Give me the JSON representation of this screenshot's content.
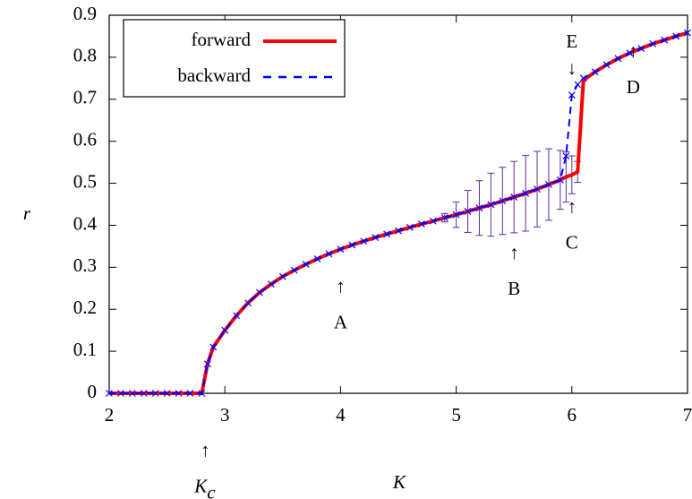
{
  "chart_data": {
    "type": "line",
    "xlabel": "K",
    "ylabel": "r",
    "x": [
      2.0,
      2.1,
      2.2,
      2.3,
      2.4,
      2.5,
      2.6,
      2.7,
      2.8,
      2.85,
      2.9,
      3.0,
      3.1,
      3.2,
      3.3,
      3.4,
      3.5,
      3.6,
      3.7,
      3.8,
      3.9,
      4.0,
      4.1,
      4.2,
      4.3,
      4.4,
      4.5,
      4.6,
      4.7,
      4.8,
      4.9,
      5.0,
      5.1,
      5.2,
      5.3,
      5.4,
      5.5,
      5.6,
      5.7,
      5.8,
      5.9,
      5.95,
      6.0,
      6.05,
      6.1,
      6.2,
      6.3,
      6.4,
      6.5,
      6.6,
      6.7,
      6.8,
      6.9,
      7.0
    ],
    "series": [
      {
        "name": "forward",
        "color": "#ff0000",
        "error_color": "#5a2ca0",
        "values": [
          0,
          0,
          0,
          0,
          0,
          0,
          0,
          0,
          0,
          0.07,
          0.11,
          0.15,
          0.185,
          0.215,
          0.24,
          0.26,
          0.278,
          0.293,
          0.307,
          0.32,
          0.332,
          0.343,
          0.353,
          0.362,
          0.371,
          0.379,
          0.387,
          0.395,
          0.403,
          0.41,
          0.418,
          0.425,
          0.433,
          0.441,
          0.449,
          0.458,
          0.467,
          0.476,
          0.486,
          0.497,
          0.508,
          0.515,
          0.52,
          0.527,
          0.745,
          0.765,
          0.782,
          0.797,
          0.81,
          0.821,
          0.832,
          0.841,
          0.85,
          0.858
        ],
        "errors": [
          null,
          null,
          null,
          null,
          null,
          null,
          null,
          null,
          null,
          null,
          null,
          null,
          null,
          null,
          null,
          null,
          null,
          null,
          null,
          null,
          null,
          null,
          null,
          null,
          null,
          null,
          null,
          null,
          null,
          null,
          0.01,
          0.03,
          0.05,
          0.065,
          0.075,
          0.08,
          0.085,
          0.09,
          0.09,
          0.085,
          0.07,
          0.06,
          0.045,
          0.025,
          null,
          null,
          null,
          null,
          null,
          null,
          null,
          null,
          null,
          null
        ]
      },
      {
        "name": "backward",
        "color": "#0000ff",
        "dashed": true,
        "marker": "x",
        "values": [
          0,
          0,
          0,
          0,
          0,
          0,
          0,
          0,
          0,
          0.07,
          0.11,
          0.15,
          0.185,
          0.215,
          0.24,
          0.26,
          0.278,
          0.293,
          0.307,
          0.32,
          0.332,
          0.343,
          0.353,
          0.362,
          0.371,
          0.379,
          0.387,
          0.395,
          0.403,
          0.41,
          0.418,
          0.425,
          0.433,
          0.441,
          0.449,
          0.458,
          0.467,
          0.476,
          0.486,
          0.497,
          0.508,
          0.565,
          0.71,
          0.735,
          0.75,
          0.765,
          0.782,
          0.797,
          0.81,
          0.821,
          0.832,
          0.841,
          0.85,
          0.858
        ]
      }
    ],
    "xlim": [
      2,
      7
    ],
    "ylim": [
      0,
      0.9
    ],
    "xticks": [
      2,
      3,
      4,
      5,
      6,
      7
    ],
    "yticks": [
      0,
      0.1,
      0.2,
      0.3,
      0.4,
      0.5,
      0.6,
      0.7,
      0.8,
      0.9
    ],
    "legend": "top-left",
    "annotations": [
      {
        "label": "A",
        "arrow": "↑",
        "x": 4.0,
        "y": 0.25
      },
      {
        "label": "B",
        "arrow": "↑",
        "x": 5.5,
        "y": 0.33
      },
      {
        "label": "C",
        "arrow": "↑",
        "x": 6.0,
        "y": 0.44
      },
      {
        "label": "D",
        "arrow": "↑",
        "x": 6.53,
        "y": 0.81
      },
      {
        "label": "E",
        "arrow": "↓",
        "x": 6.0,
        "y": 0.77
      },
      {
        "label": "K",
        "sub": "c",
        "arrow": "↑",
        "x": 2.83,
        "y": -0.14
      }
    ]
  }
}
